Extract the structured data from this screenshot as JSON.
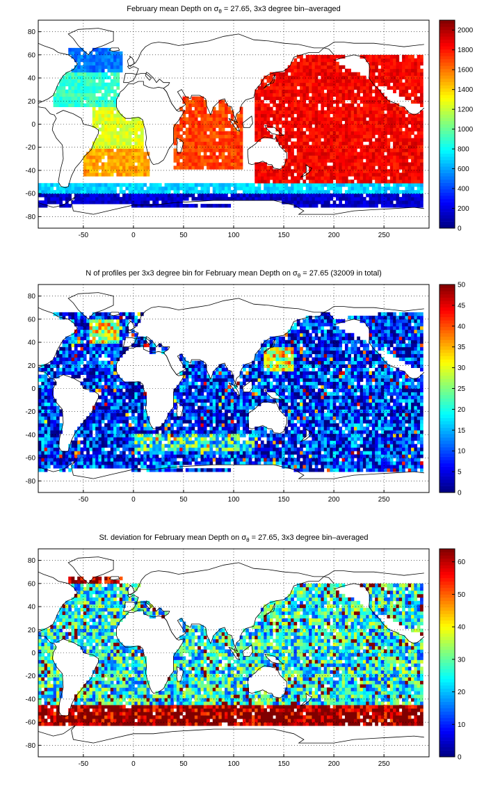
{
  "charts": [
    {
      "title_pre": "February mean Depth on σ",
      "title_sub": "θ",
      "title_post": " = 27.65, 3x3 degree bin–averaged",
      "colorbar": {
        "min": 0,
        "max": 2100,
        "ticks": [
          "0",
          "200",
          "400",
          "600",
          "800",
          "1000",
          "1200",
          "1400",
          "1600",
          "1800",
          "2000"
        ]
      }
    },
    {
      "title_pre": "N of profiles per 3x3 degree bin for February mean Depth on σ",
      "title_sub": "θ",
      "title_post": " = 27.65 (32009 in total)",
      "colorbar": {
        "min": 0,
        "max": 50,
        "ticks": [
          "0",
          "5",
          "10",
          "15",
          "20",
          "25",
          "30",
          "35",
          "40",
          "45",
          "50"
        ]
      }
    },
    {
      "title_pre": "St. deviation for February mean Depth on σ",
      "title_sub": "θ",
      "title_post": " = 27.65, 3x3 degree bin–averaged",
      "colorbar": {
        "min": 0,
        "max": 64,
        "ticks": [
          "0",
          "10",
          "20",
          "30",
          "40",
          "50",
          "60"
        ]
      }
    }
  ],
  "axes": {
    "x_ticks": [
      "-50",
      "0",
      "50",
      "100",
      "150",
      "200",
      "250"
    ],
    "y_ticks": [
      "80",
      "60",
      "40",
      "20",
      "0",
      "-20",
      "-40",
      "-60",
      "-80"
    ]
  },
  "chart_data": [
    {
      "type": "heatmap",
      "title": "February mean Depth on σθ = 27.65, 3x3 degree bin–averaged",
      "x_range": [
        -95,
        295
      ],
      "y_range": [
        -90,
        90
      ],
      "grid": true,
      "colormap": "jet",
      "clim": [
        0,
        2100
      ],
      "bin_size_deg": 3,
      "regions": [
        {
          "lon": [
            -65,
            -10
          ],
          "lat": [
            45,
            65
          ],
          "value": 500
        },
        {
          "lon": [
            -80,
            -15
          ],
          "lat": [
            15,
            45
          ],
          "value": 900
        },
        {
          "lon": [
            -40,
            10
          ],
          "lat": [
            -20,
            15
          ],
          "value": 1250
        },
        {
          "lon": [
            -50,
            15
          ],
          "lat": [
            -45,
            -20
          ],
          "value": 1500
        },
        {
          "lon": [
            40,
            110
          ],
          "lat": [
            -40,
            25
          ],
          "value": 1700
        },
        {
          "lon": [
            120,
            290
          ],
          "lat": [
            -50,
            60
          ],
          "value": 1850
        },
        {
          "lon": [
            -95,
            290
          ],
          "lat": [
            -60,
            -50
          ],
          "value": 700
        },
        {
          "lon": [
            -95,
            290
          ],
          "lat": [
            -72,
            -60
          ],
          "value": 150
        }
      ]
    },
    {
      "type": "heatmap",
      "title": "N of profiles per 3x3 degree bin for February mean Depth on σθ = 27.65 (32009 in total)",
      "x_range": [
        -95,
        295
      ],
      "y_range": [
        -90,
        90
      ],
      "grid": true,
      "colormap": "jet",
      "clim": [
        0,
        50
      ],
      "total_profiles": 32009,
      "regions": [
        {
          "lon": [
            -95,
            290
          ],
          "lat": [
            -72,
            65
          ],
          "value": 8
        },
        {
          "lon": [
            -45,
            -15
          ],
          "lat": [
            40,
            60
          ],
          "value": 30
        },
        {
          "lon": [
            130,
            160
          ],
          "lat": [
            15,
            35
          ],
          "value": 30
        },
        {
          "lon": [
            0,
            120
          ],
          "lat": [
            -55,
            -40
          ],
          "value": 20
        }
      ]
    },
    {
      "type": "heatmap",
      "title": "St. deviation for February mean Depth on σθ = 27.65, 3x3 degree bin–averaged",
      "x_range": [
        -95,
        295
      ],
      "y_range": [
        -90,
        90
      ],
      "grid": true,
      "colormap": "jet",
      "clim": [
        0,
        64
      ],
      "regions": [
        {
          "lon": [
            -65,
            -10
          ],
          "lat": [
            30,
            65
          ],
          "value": 64
        },
        {
          "lon": [
            -95,
            290
          ],
          "lat": [
            -62,
            -45
          ],
          "value": 64
        },
        {
          "lon": [
            -95,
            290
          ],
          "lat": [
            -45,
            60
          ],
          "value": 25
        }
      ]
    }
  ]
}
